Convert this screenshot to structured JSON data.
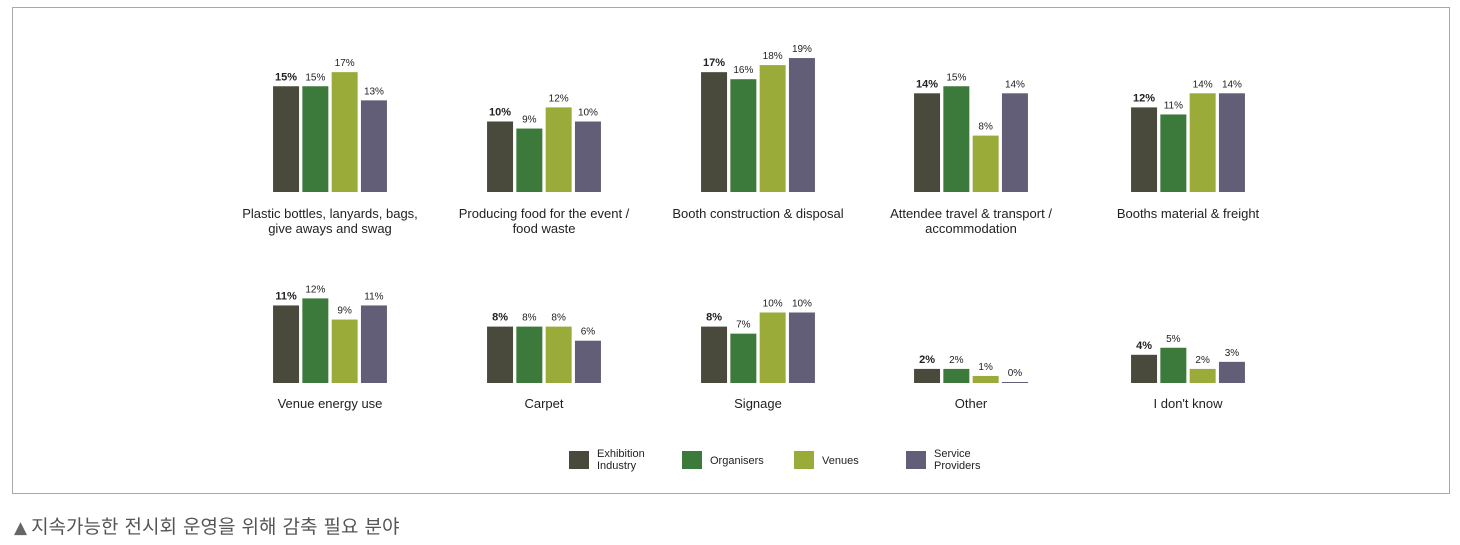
{
  "chart_data": {
    "type": "bar",
    "series": [
      {
        "name": "Exhibition Industry",
        "color": "#4a4a3c"
      },
      {
        "name": "Organisers",
        "color": "#3b7a3b"
      },
      {
        "name": "Venues",
        "color": "#9aab3a"
      },
      {
        "name": "Service Providers",
        "color": "#625e78"
      }
    ],
    "legend_lines": [
      [
        "Exhibition",
        "Industry"
      ],
      [
        "Organisers"
      ],
      [
        "Venues"
      ],
      [
        "Service",
        "Providers"
      ]
    ],
    "panels": [
      {
        "label": [
          "Plastic bottles, lanyards, bags,",
          "give aways and swag"
        ],
        "values": [
          15,
          15,
          17,
          13
        ]
      },
      {
        "label": [
          "Producing food for the event /",
          "food waste"
        ],
        "values": [
          10,
          9,
          12,
          10
        ]
      },
      {
        "label": [
          "Booth construction & disposal"
        ],
        "values": [
          17,
          16,
          18,
          19
        ]
      },
      {
        "label": [
          "Attendee travel & transport /",
          "accommodation"
        ],
        "values": [
          14,
          15,
          8,
          14
        ]
      },
      {
        "label": [
          "Booths material & freight"
        ],
        "values": [
          12,
          11,
          14,
          14
        ]
      },
      {
        "label": [
          "Venue energy use"
        ],
        "values": [
          11,
          12,
          9,
          11
        ]
      },
      {
        "label": [
          "Carpet"
        ],
        "values": [
          8,
          8,
          8,
          6
        ]
      },
      {
        "label": [
          "Signage"
        ],
        "values": [
          8,
          7,
          10,
          10
        ]
      },
      {
        "label": [
          "Other"
        ],
        "values": [
          2,
          2,
          1,
          0
        ]
      },
      {
        "label": [
          "I don't know"
        ],
        "values": [
          4,
          5,
          2,
          3
        ]
      }
    ],
    "value_suffix": "%",
    "legend_position": "bottom-center"
  },
  "caption": {
    "marker": "▲",
    "text": "지속가능한 전시회 운영을 위해 감축 필요 분야"
  }
}
